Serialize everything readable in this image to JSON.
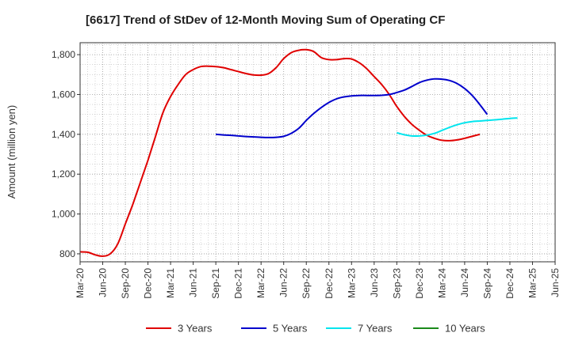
{
  "chart_data": {
    "type": "line",
    "title": "[6617]  Trend of StDev of 12-Month Moving Sum of Operating CF",
    "xlabel": "",
    "ylabel": "Amount (million yen)",
    "ylim": [
      760,
      1860
    ],
    "yticks": [
      "800",
      "1,000",
      "1,200",
      "1,400",
      "1,600",
      "1,800"
    ],
    "ytick_values": [
      800,
      1000,
      1200,
      1400,
      1600,
      1800
    ],
    "xticks": [
      "Mar-20",
      "Jun-20",
      "Sep-20",
      "Dec-20",
      "Mar-21",
      "Jun-21",
      "Sep-21",
      "Dec-21",
      "Mar-22",
      "Jun-22",
      "Sep-22",
      "Dec-22",
      "Mar-23",
      "Jun-23",
      "Sep-23",
      "Dec-23",
      "Mar-24",
      "Jun-24",
      "Sep-24",
      "Dec-24",
      "Mar-25",
      "Jun-25"
    ],
    "grid": true,
    "legend_position": "bottom",
    "series": [
      {
        "name": "3 Years",
        "color": "#e00000",
        "start_index": 0,
        "values": [
          810,
          808,
          795,
          788,
          800,
          850,
          950,
          1050,
          1160,
          1270,
          1390,
          1510,
          1590,
          1650,
          1700,
          1725,
          1740,
          1742,
          1740,
          1735,
          1725,
          1715,
          1705,
          1698,
          1697,
          1705,
          1735,
          1780,
          1810,
          1822,
          1825,
          1815,
          1785,
          1775,
          1775,
          1780,
          1778,
          1760,
          1730,
          1690,
          1650,
          1600,
          1540,
          1490,
          1450,
          1420,
          1395,
          1380,
          1370,
          1368,
          1372,
          1380,
          1390,
          1400
        ]
      },
      {
        "name": "5 Years",
        "color": "#0000cc",
        "start_index": 18,
        "values": [
          1400,
          1397,
          1395,
          1392,
          1389,
          1387,
          1385,
          1384,
          1385,
          1390,
          1405,
          1430,
          1470,
          1505,
          1535,
          1560,
          1578,
          1588,
          1593,
          1595,
          1595,
          1595,
          1596,
          1600,
          1610,
          1622,
          1640,
          1660,
          1672,
          1678,
          1677,
          1670,
          1655,
          1630,
          1595,
          1550,
          1500
        ]
      },
      {
        "name": "7 Years",
        "color": "#00e5ee",
        "start_index": 42,
        "values": [
          1408,
          1398,
          1392,
          1392,
          1396,
          1405,
          1420,
          1435,
          1448,
          1458,
          1464,
          1467,
          1470,
          1473,
          1476,
          1480,
          1482
        ]
      },
      {
        "name": "10 Years",
        "color": "#1a8a1a",
        "start_index": 0,
        "values": []
      }
    ]
  }
}
